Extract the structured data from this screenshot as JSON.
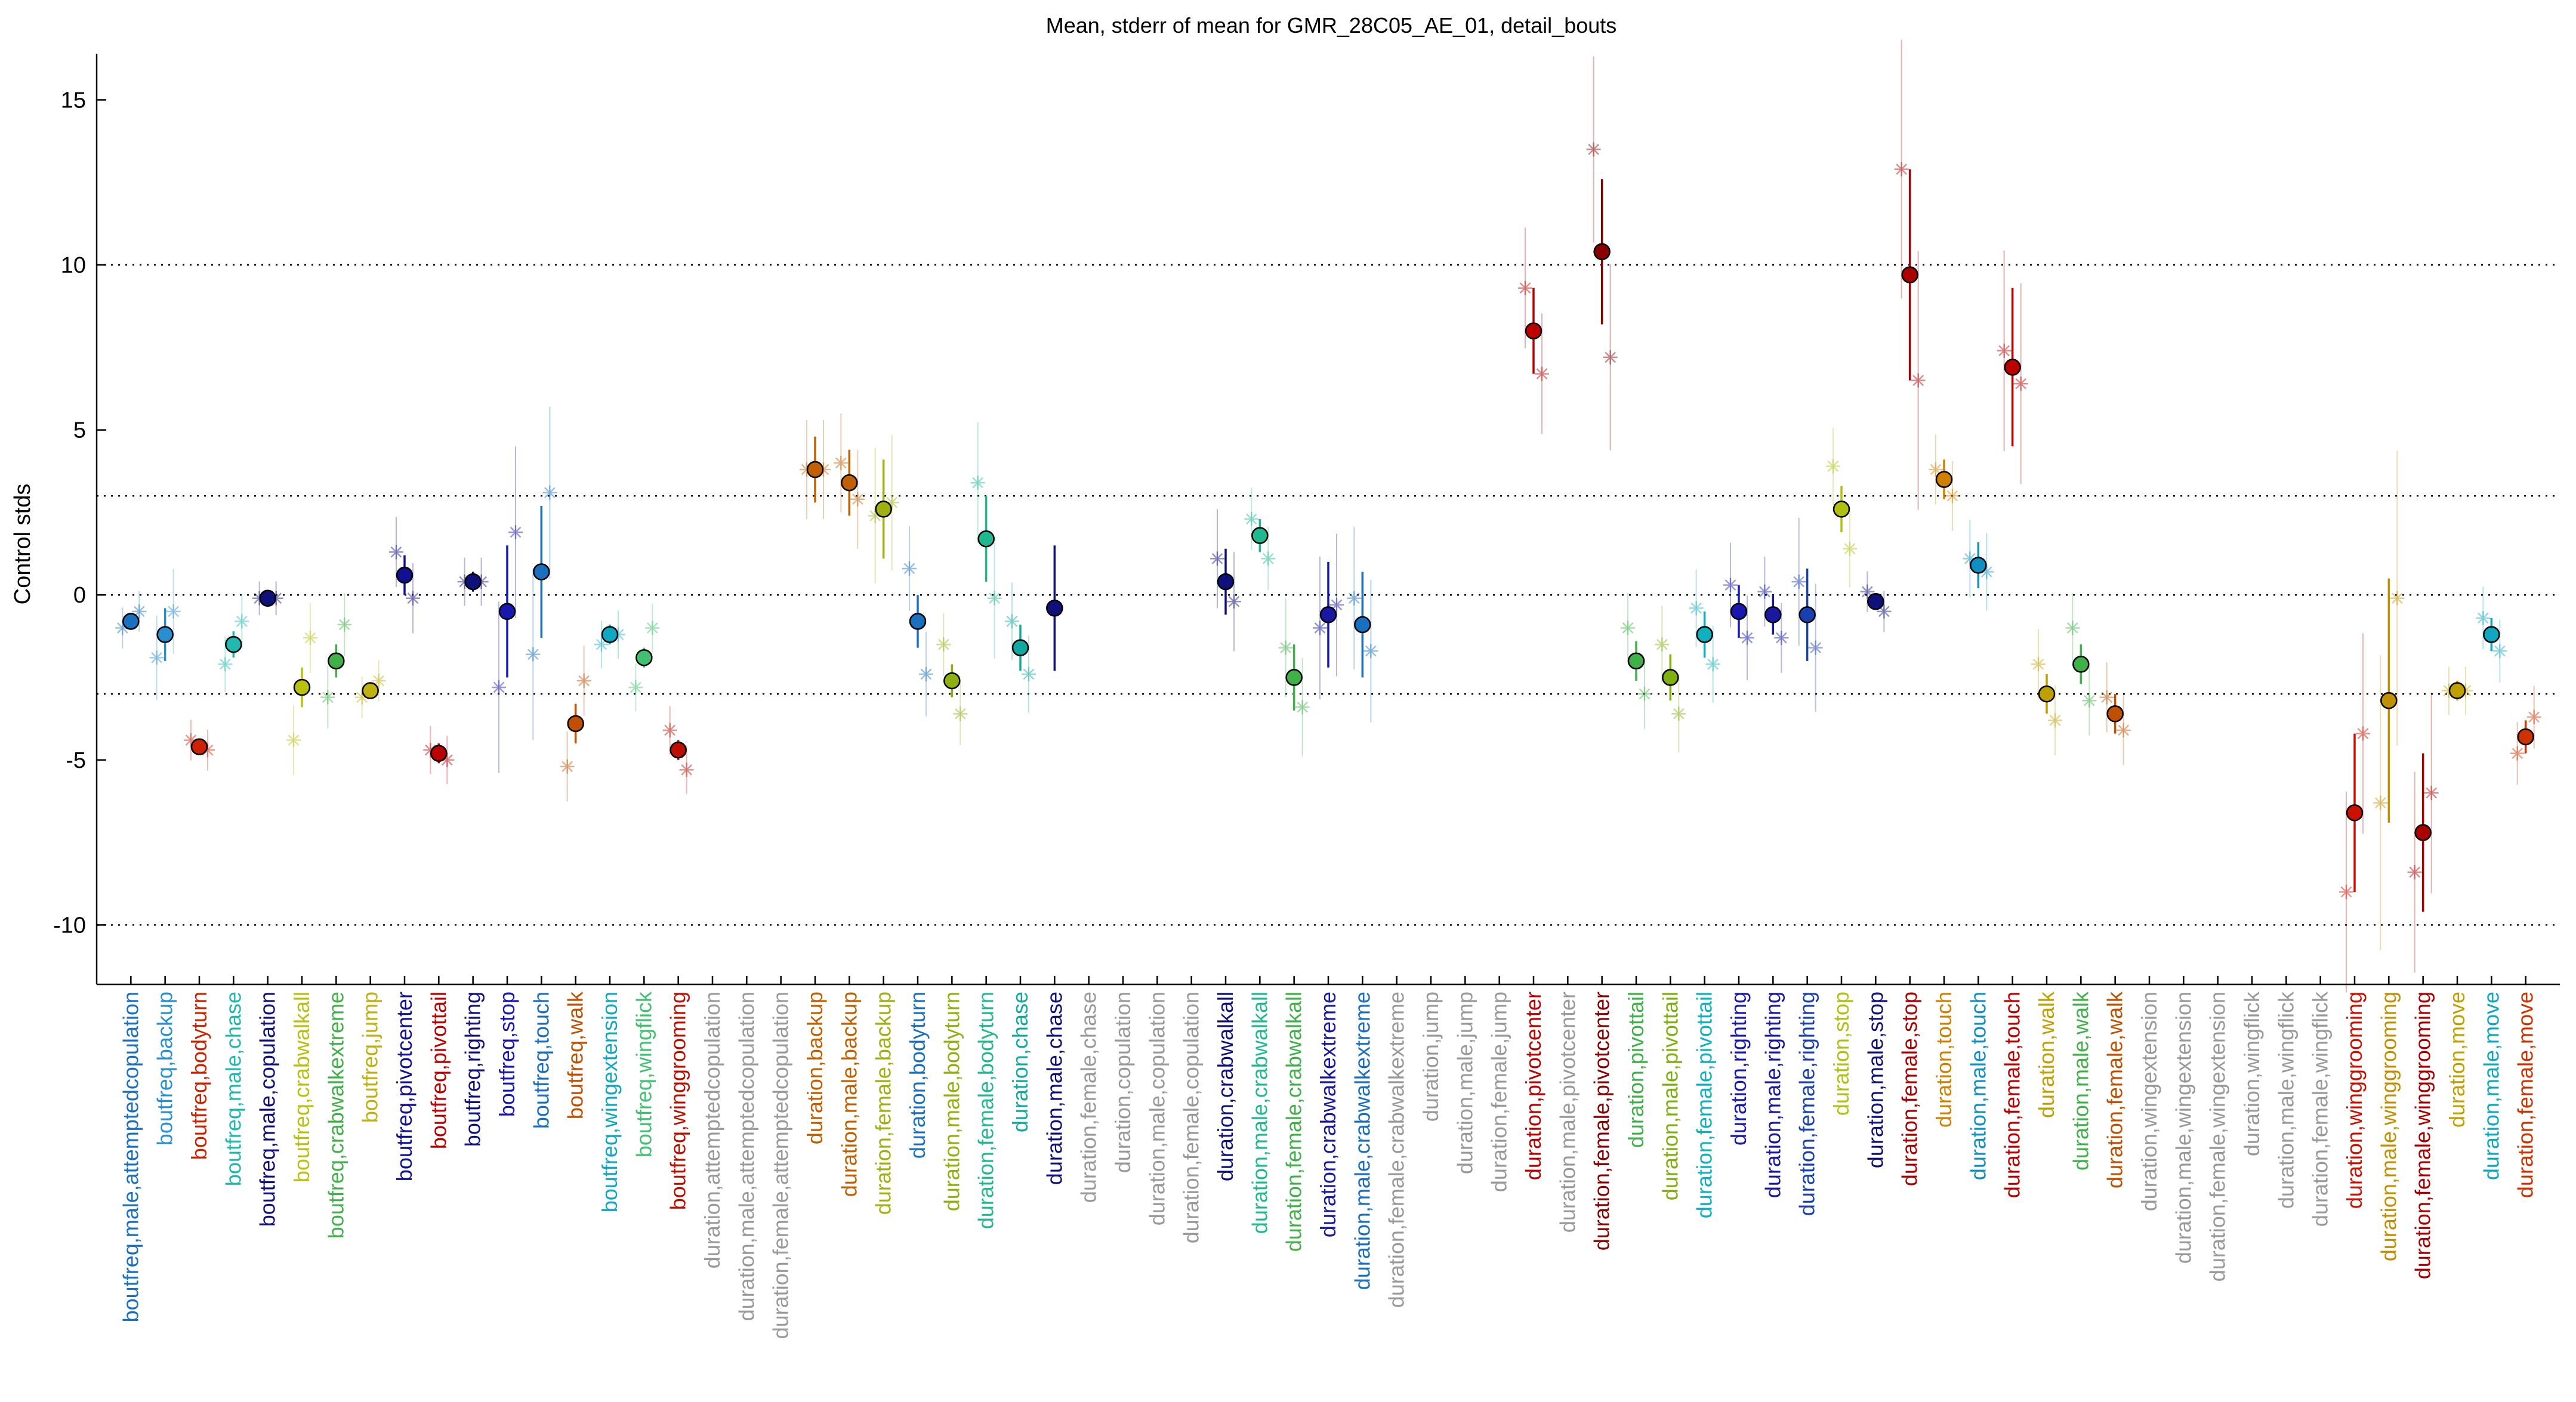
{
  "chart_data": {
    "type": "scatter",
    "title": "Mean, stderr of mean for GMR_28C05_AE_01, detail_bouts",
    "xlabel": "",
    "ylabel": "Control stds",
    "ylim": [
      -11.8,
      16.4
    ],
    "yticks": [
      15,
      10,
      5,
      0,
      -5,
      -10
    ],
    "reference_lines": [
      10,
      3,
      0,
      -3,
      -10
    ],
    "grid": false,
    "categories": [
      {
        "label": "boutfreq,male,attemptedcopulation",
        "color": "#1a6fbf",
        "mean": -0.8,
        "err": 0.2,
        "stars": [
          -1.0,
          -0.5
        ]
      },
      {
        "label": "boutfreq,backup",
        "color": "#2a8fd0",
        "mean": -1.2,
        "err": 0.8,
        "stars": [
          -1.9,
          -0.5
        ]
      },
      {
        "label": "boutfreq,bodyturn",
        "color": "#cc2200",
        "mean": -4.6,
        "err": 0.2,
        "stars": [
          -4.4,
          -4.7
        ]
      },
      {
        "label": "boutfreq,male,chase",
        "color": "#20b8b0",
        "mean": -1.5,
        "err": 0.4,
        "stars": [
          -2.1,
          -0.8
        ]
      },
      {
        "label": "boutfreq,male,copulation",
        "color": "#10107a",
        "mean": -0.1,
        "err": 0.1,
        "stars": [
          -0.1,
          -0.1
        ]
      },
      {
        "label": "boutfreq,crabwalkall",
        "color": "#b8c010",
        "mean": -2.8,
        "err": 0.6,
        "stars": [
          -4.4,
          -1.3
        ]
      },
      {
        "label": "boutfreq,crabwalkextreme",
        "color": "#40b048",
        "mean": -2.0,
        "err": 0.5,
        "stars": [
          -3.1,
          -0.9
        ]
      },
      {
        "label": "boutfreq,jump",
        "color": "#c0b010",
        "mean": -2.9,
        "err": 0.2,
        "stars": [
          -3.1,
          -2.6
        ]
      },
      {
        "label": "boutfreq,pivotcenter",
        "color": "#101090",
        "mean": 0.6,
        "err": 0.6,
        "stars": [
          1.3,
          -0.1
        ]
      },
      {
        "label": "boutfreq,pivottail",
        "color": "#bb0000",
        "mean": -4.8,
        "err": 0.3,
        "stars": [
          -4.7,
          -5.0
        ]
      },
      {
        "label": "boutfreq,righting",
        "color": "#10107a",
        "mean": 0.4,
        "err": 0.3,
        "stars": [
          0.4,
          0.4
        ]
      },
      {
        "label": "boutfreq,stop",
        "color": "#1818b0",
        "mean": -0.5,
        "err": 2.0,
        "stars": [
          -2.8,
          1.9
        ]
      },
      {
        "label": "boutfreq,touch",
        "color": "#1a6fbf",
        "mean": 0.7,
        "err": 2.0,
        "stars": [
          -1.8,
          3.1
        ]
      },
      {
        "label": "boutfreq,walk",
        "color": "#c05000",
        "mean": -3.9,
        "err": 0.6,
        "stars": [
          -5.2,
          -2.6
        ]
      },
      {
        "label": "boutfreq,wingextension",
        "color": "#10a8c0",
        "mean": -1.2,
        "err": 0.3,
        "stars": [
          -1.5,
          -1.2
        ]
      },
      {
        "label": "boutfreq,wingflick",
        "color": "#40c070",
        "mean": -1.9,
        "err": 0.3,
        "stars": [
          -2.8,
          -1.0
        ]
      },
      {
        "label": "boutfreq,winggrooming",
        "color": "#bb1000",
        "mean": -4.7,
        "err": 0.3,
        "stars": [
          -4.1,
          -5.3
        ]
      },
      {
        "label": "duration,attemptedcopulation",
        "color": "#999999"
      },
      {
        "label": "duration,male,attemptedcopulation",
        "color": "#999999"
      },
      {
        "label": "duration,female,attemptedcopulation",
        "color": "#999999"
      },
      {
        "label": "duration,backup",
        "color": "#c06000",
        "mean": 3.8,
        "err": 1.0,
        "stars": [
          3.8,
          3.8
        ]
      },
      {
        "label": "duration,male,backup",
        "color": "#c06000",
        "mean": 3.4,
        "err": 1.0,
        "stars": [
          4.0,
          2.9
        ]
      },
      {
        "label": "duration,female,backup",
        "color": "#a0b010",
        "mean": 2.6,
        "err": 1.5,
        "stars": [
          2.4,
          2.8
        ]
      },
      {
        "label": "duration,bodyturn",
        "color": "#1a6fbf",
        "mean": -0.8,
        "err": 0.8,
        "stars": [
          0.8,
          -2.4
        ]
      },
      {
        "label": "duration,male,bodyturn",
        "color": "#90b010",
        "mean": -2.6,
        "err": 0.5,
        "stars": [
          -1.5,
          -3.6
        ]
      },
      {
        "label": "duration,female,bodyturn",
        "color": "#20b890",
        "mean": 1.7,
        "err": 1.3,
        "stars": [
          3.4,
          -0.1
        ]
      },
      {
        "label": "duration,chase",
        "color": "#10a8a0",
        "mean": -1.6,
        "err": 0.7,
        "stars": [
          -0.8,
          -2.4
        ]
      },
      {
        "label": "duration,male,chase",
        "color": "#10107a",
        "mean": -0.4,
        "err": 1.9,
        "stars": []
      },
      {
        "label": "duration,female,chase",
        "color": "#999999"
      },
      {
        "label": "duration,copulation",
        "color": "#999999"
      },
      {
        "label": "duration,male,copulation",
        "color": "#999999"
      },
      {
        "label": "duration,female,copulation",
        "color": "#999999"
      },
      {
        "label": "duration,crabwalkall",
        "color": "#10107a",
        "mean": 0.4,
        "err": 1.0,
        "stars": [
          1.1,
          -0.2
        ]
      },
      {
        "label": "duration,male,crabwalkall",
        "color": "#20b890",
        "mean": 1.8,
        "err": 0.5,
        "stars": [
          2.3,
          1.1
        ]
      },
      {
        "label": "duration,female,crabwalkall",
        "color": "#40b048",
        "mean": -2.5,
        "err": 1.0,
        "stars": [
          -1.6,
          -3.4
        ]
      },
      {
        "label": "duration,crabwalkextreme",
        "color": "#1818a0",
        "mean": -0.6,
        "err": 1.6,
        "stars": [
          -1.0,
          -0.3
        ]
      },
      {
        "label": "duration,male,crabwalkextreme",
        "color": "#1a6fbf",
        "mean": -0.9,
        "err": 1.6,
        "stars": [
          -0.1,
          -1.7
        ]
      },
      {
        "label": "duration,female,crabwalkextreme",
        "color": "#999999"
      },
      {
        "label": "duration,jump",
        "color": "#999999"
      },
      {
        "label": "duration,male,jump",
        "color": "#999999"
      },
      {
        "label": "duration,female,jump",
        "color": "#999999"
      },
      {
        "label": "duration,pivotcenter",
        "color": "#bb0000",
        "mean": 8.0,
        "err": 1.3,
        "stars": [
          9.3,
          6.7
        ]
      },
      {
        "label": "duration,male,pivotcenter",
        "color": "#999999"
      },
      {
        "label": "duration,female,pivotcenter",
        "color": "#880000",
        "mean": 10.4,
        "err": 2.2,
        "stars": [
          13.5,
          7.2
        ]
      },
      {
        "label": "duration,pivottail",
        "color": "#40b048",
        "mean": -2.0,
        "err": 0.6,
        "stars": [
          -1.0,
          -3.0
        ]
      },
      {
        "label": "duration,male,pivottail",
        "color": "#80b010",
        "mean": -2.5,
        "err": 0.7,
        "stars": [
          -1.5,
          -3.6
        ]
      },
      {
        "label": "duration,female,pivottail",
        "color": "#10b0c0",
        "mean": -1.2,
        "err": 0.7,
        "stars": [
          -0.4,
          -2.1
        ]
      },
      {
        "label": "duration,righting",
        "color": "#1818b0",
        "mean": -0.5,
        "err": 0.8,
        "stars": [
          0.3,
          -1.3
        ]
      },
      {
        "label": "duration,male,righting",
        "color": "#1818a0",
        "mean": -0.6,
        "err": 0.6,
        "stars": [
          0.1,
          -1.3
        ]
      },
      {
        "label": "duration,female,righting",
        "color": "#1840b0",
        "mean": -0.6,
        "err": 1.4,
        "stars": [
          0.4,
          -1.6
        ]
      },
      {
        "label": "duration,stop",
        "color": "#b0c010",
        "mean": 2.6,
        "err": 0.7,
        "stars": [
          3.9,
          1.4
        ]
      },
      {
        "label": "duration,male,stop",
        "color": "#10107a",
        "mean": -0.2,
        "err": 0.2,
        "stars": [
          0.1,
          -0.5
        ]
      },
      {
        "label": "duration,female,stop",
        "color": "#aa0000",
        "mean": 9.7,
        "err": 3.2,
        "stars": [
          12.9,
          6.5
        ]
      },
      {
        "label": "duration,touch",
        "color": "#d08000",
        "mean": 3.5,
        "err": 0.6,
        "stars": [
          3.8,
          3.0
        ]
      },
      {
        "label": "duration,male,touch",
        "color": "#1090c0",
        "mean": 0.9,
        "err": 0.7,
        "stars": [
          1.1,
          0.7
        ]
      },
      {
        "label": "duration,female,touch",
        "color": "#bb0000",
        "mean": 6.9,
        "err": 2.4,
        "stars": [
          7.4,
          6.4
        ]
      },
      {
        "label": "duration,walk",
        "color": "#c0a000",
        "mean": -3.0,
        "err": 0.6,
        "stars": [
          -2.1,
          -3.8
        ]
      },
      {
        "label": "duration,male,walk",
        "color": "#40b048",
        "mean": -2.1,
        "err": 0.6,
        "stars": [
          -1.0,
          -3.2
        ]
      },
      {
        "label": "duration,female,walk",
        "color": "#c05000",
        "mean": -3.6,
        "err": 0.6,
        "stars": [
          -3.1,
          -4.1
        ]
      },
      {
        "label": "duration,wingextension",
        "color": "#999999"
      },
      {
        "label": "duration,male,wingextension",
        "color": "#999999"
      },
      {
        "label": "duration,female,wingextension",
        "color": "#999999"
      },
      {
        "label": "duration,wingflick",
        "color": "#999999"
      },
      {
        "label": "duration,male,wingflick",
        "color": "#999999"
      },
      {
        "label": "duration,female,wingflick",
        "color": "#999999"
      },
      {
        "label": "duration,winggrooming",
        "color": "#cc1000",
        "mean": -6.6,
        "err": 2.4,
        "stars": [
          -9.0,
          -4.2
        ]
      },
      {
        "label": "duration,male,winggrooming",
        "color": "#c09000",
        "mean": -3.2,
        "err": 3.7,
        "stars": [
          -6.3,
          -0.1
        ]
      },
      {
        "label": "duration,female,winggrooming",
        "color": "#aa0000",
        "mean": -7.2,
        "err": 2.4,
        "stars": [
          -8.4,
          -6.0
        ]
      },
      {
        "label": "duration,move",
        "color": "#c0a000",
        "mean": -2.9,
        "err": 0.3,
        "stars": [
          -2.9,
          -2.9
        ]
      },
      {
        "label": "duration,male,move",
        "color": "#10a8c0",
        "mean": -1.2,
        "err": 0.5,
        "stars": [
          -0.7,
          -1.7
        ]
      },
      {
        "label": "duration,female,move",
        "color": "#cc3300",
        "mean": -4.3,
        "err": 0.5,
        "stars": [
          -4.8,
          -3.7
        ]
      }
    ]
  }
}
